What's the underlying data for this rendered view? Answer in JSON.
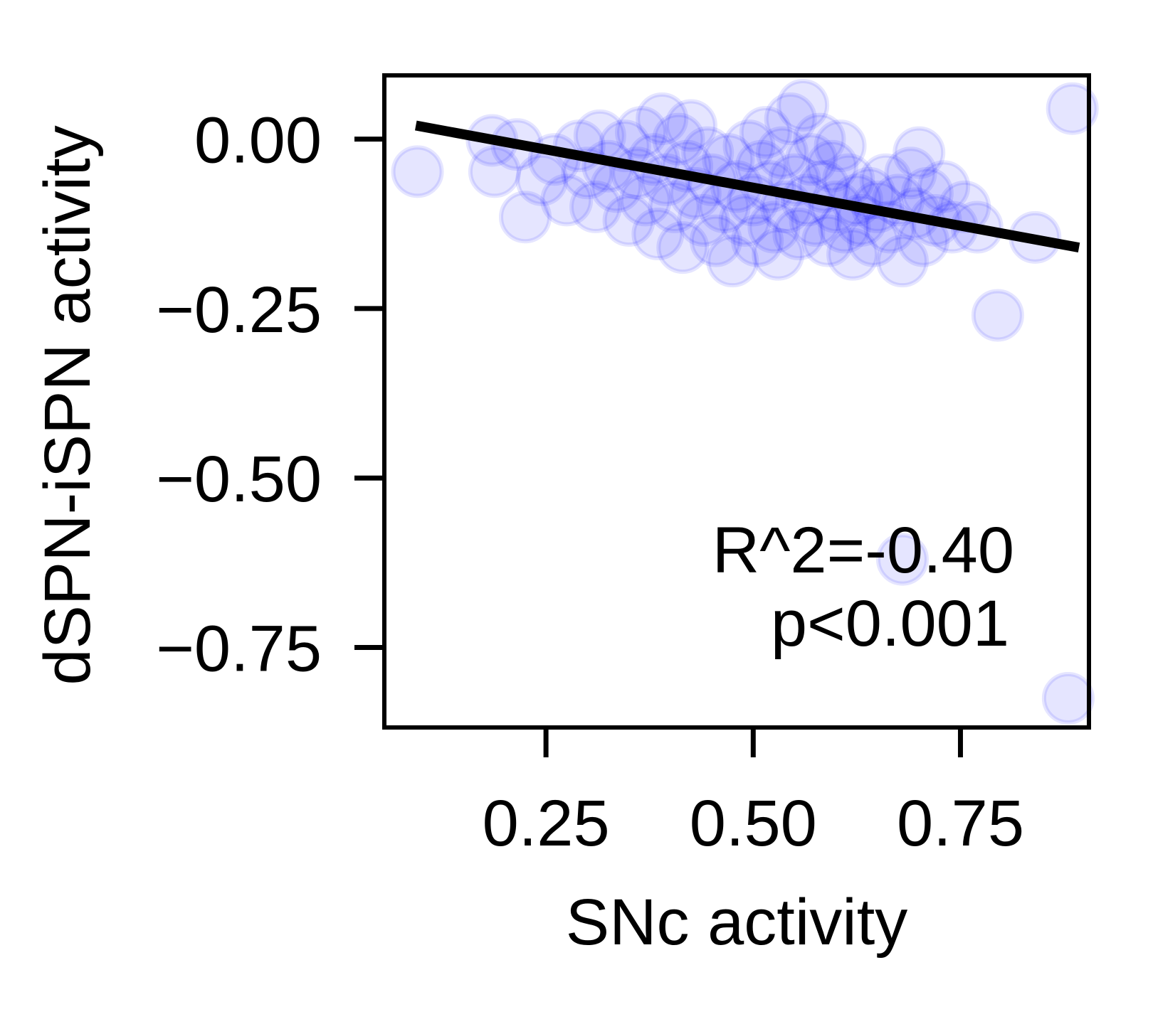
{
  "chart_data": {
    "type": "scatter",
    "title": "",
    "xlabel": "SNc activity",
    "ylabel": "dSPN-iSPN activity",
    "xlim": [
      0.055,
      0.905
    ],
    "ylim": [
      -0.868,
      0.094
    ],
    "xticks": [
      0.25,
      0.5,
      0.75
    ],
    "xtick_labels": [
      "0.25",
      "0.50",
      "0.75"
    ],
    "yticks": [
      0.0,
      -0.25,
      -0.5,
      -0.75
    ],
    "ytick_labels": [
      "0.00",
      "−0.25",
      "−0.50",
      "−0.75"
    ],
    "grid": false,
    "series": [
      {
        "name": "",
        "color": "#0000ff",
        "alpha": 0.1,
        "points": [
          [
            0.095,
            -0.048
          ],
          [
            0.185,
            -0.002
          ],
          [
            0.188,
            -0.048
          ],
          [
            0.215,
            -0.008
          ],
          [
            0.225,
            -0.115
          ],
          [
            0.245,
            -0.06
          ],
          [
            0.26,
            -0.03
          ],
          [
            0.275,
            -0.09
          ],
          [
            0.29,
            -0.01
          ],
          [
            0.3,
            -0.05
          ],
          [
            0.31,
            -0.1
          ],
          [
            0.315,
            0.005
          ],
          [
            0.325,
            -0.04
          ],
          [
            0.335,
            -0.07
          ],
          [
            0.345,
            -0.01
          ],
          [
            0.35,
            -0.12
          ],
          [
            0.36,
            -0.05
          ],
          [
            0.365,
            0.01
          ],
          [
            0.37,
            -0.09
          ],
          [
            0.38,
            -0.03
          ],
          [
            0.385,
            -0.14
          ],
          [
            0.39,
            0.03
          ],
          [
            0.395,
            -0.06
          ],
          [
            0.405,
            -0.1
          ],
          [
            0.41,
            0.0
          ],
          [
            0.415,
            -0.16
          ],
          [
            0.42,
            -0.04
          ],
          [
            0.425,
            0.02
          ],
          [
            0.43,
            -0.08
          ],
          [
            0.44,
            -0.12
          ],
          [
            0.445,
            -0.02
          ],
          [
            0.45,
            -0.06
          ],
          [
            0.455,
            -0.15
          ],
          [
            0.465,
            -0.1
          ],
          [
            0.47,
            -0.03
          ],
          [
            0.475,
            -0.18
          ],
          [
            0.48,
            -0.07
          ],
          [
            0.49,
            -0.12
          ],
          [
            0.495,
            -0.01
          ],
          [
            0.5,
            -0.09
          ],
          [
            0.505,
            -0.15
          ],
          [
            0.51,
            -0.04
          ],
          [
            0.515,
            0.01
          ],
          [
            0.52,
            -0.07
          ],
          [
            0.525,
            -0.13
          ],
          [
            0.53,
            -0.17
          ],
          [
            0.535,
            -0.02
          ],
          [
            0.54,
            -0.1
          ],
          [
            0.545,
            0.03
          ],
          [
            0.55,
            -0.06
          ],
          [
            0.555,
            -0.14
          ],
          [
            0.56,
            0.05
          ],
          [
            0.565,
            -0.09
          ],
          [
            0.57,
            -0.03
          ],
          [
            0.575,
            -0.12
          ],
          [
            0.58,
            0.0
          ],
          [
            0.585,
            -0.07
          ],
          [
            0.59,
            -0.15
          ],
          [
            0.595,
            -0.04
          ],
          [
            0.6,
            -0.1
          ],
          [
            0.605,
            -0.01
          ],
          [
            0.61,
            -0.13
          ],
          [
            0.615,
            -0.06
          ],
          [
            0.62,
            -0.17
          ],
          [
            0.625,
            -0.09
          ],
          [
            0.63,
            -0.12
          ],
          [
            0.64,
            -0.08
          ],
          [
            0.645,
            -0.15
          ],
          [
            0.65,
            -0.1
          ],
          [
            0.66,
            -0.06
          ],
          [
            0.665,
            -0.13
          ],
          [
            0.675,
            -0.09
          ],
          [
            0.68,
            -0.18
          ],
          [
            0.69,
            -0.05
          ],
          [
            0.695,
            -0.11
          ],
          [
            0.7,
            -0.02
          ],
          [
            0.705,
            -0.15
          ],
          [
            0.71,
            -0.08
          ],
          [
            0.72,
            -0.12
          ],
          [
            0.73,
            -0.07
          ],
          [
            0.74,
            -0.13
          ],
          [
            0.755,
            -0.1
          ],
          [
            0.77,
            -0.13
          ],
          [
            0.795,
            -0.26
          ],
          [
            0.84,
            -0.145
          ],
          [
            0.885,
            0.045
          ],
          [
            0.88,
            -0.825
          ],
          [
            0.68,
            -0.62
          ]
        ]
      }
    ],
    "regression_line": {
      "x": [
        0.093,
        0.893
      ],
      "y": [
        0.02,
        -0.16
      ],
      "color": "#000000"
    },
    "annotations": [
      "R^2=-0.40",
      "p<0.001"
    ]
  }
}
